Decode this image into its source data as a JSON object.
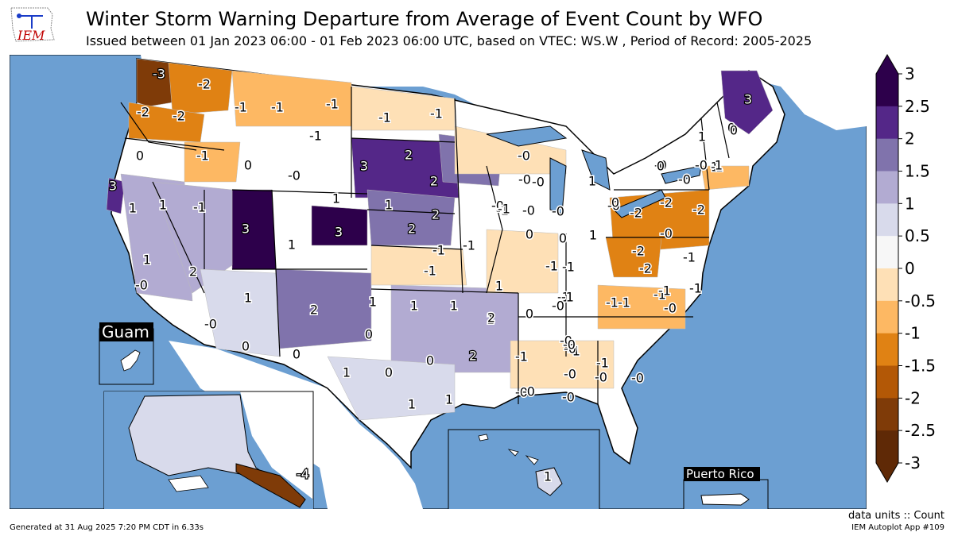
{
  "header": {
    "logo_text": "IEM",
    "title": "Winter Storm Warning Departure from Average of Event Count by WFO",
    "subtitle": "Issued between 01 Jan 2023 06:00 - 01 Feb 2023 06:00 UTC, based on VTEC: WS.W  , Period of Record: 2005-2025"
  },
  "map": {
    "ocean_color": "#6c9fd2",
    "land_color": "#ffffff",
    "insets": {
      "guam": "Guam",
      "puerto_rico": "Puerto Rico"
    },
    "labels": [
      {
        "text": "-3",
        "light": true
      },
      {
        "text": "-2",
        "light": false
      },
      {
        "text": "-2",
        "light": false
      },
      {
        "text": "-2",
        "light": false
      },
      {
        "text": "-1",
        "light": false
      },
      {
        "text": "-1",
        "light": false
      },
      {
        "text": "-1",
        "light": false
      },
      {
        "text": "-1",
        "light": false
      },
      {
        "text": "-1",
        "light": false
      },
      {
        "text": "-1",
        "light": false
      },
      {
        "text": "0",
        "light": false
      },
      {
        "text": "-1",
        "light": false
      },
      {
        "text": "0",
        "light": false
      },
      {
        "text": "-0",
        "light": false
      },
      {
        "text": "3",
        "light": true
      },
      {
        "text": "2",
        "light": true
      },
      {
        "text": "2",
        "light": true
      },
      {
        "text": "3",
        "light": true
      },
      {
        "text": "1",
        "light": false
      },
      {
        "text": "-1",
        "light": false
      },
      {
        "text": "1",
        "light": false
      },
      {
        "text": "3",
        "light": true
      },
      {
        "text": "1",
        "light": false
      },
      {
        "text": "3",
        "light": true
      },
      {
        "text": "1",
        "light": false
      },
      {
        "text": "2",
        "light": true
      },
      {
        "text": "1",
        "light": false
      },
      {
        "text": "2",
        "light": true
      },
      {
        "text": "1",
        "light": false
      },
      {
        "text": "-0",
        "light": false
      },
      {
        "text": "2",
        "light": false
      },
      {
        "text": "1",
        "light": false
      },
      {
        "text": "0",
        "light": false
      },
      {
        "text": "2",
        "light": false
      },
      {
        "text": "-0",
        "light": false
      },
      {
        "text": "0",
        "light": false
      },
      {
        "text": "1",
        "light": false
      },
      {
        "text": "0",
        "light": false
      },
      {
        "text": "1",
        "light": false
      },
      {
        "text": "0",
        "light": false
      },
      {
        "text": "0",
        "light": false
      },
      {
        "text": "1",
        "light": false
      },
      {
        "text": "1",
        "light": false
      },
      {
        "text": "1",
        "light": false
      },
      {
        "text": "1",
        "light": false
      },
      {
        "text": "2",
        "light": true
      },
      {
        "text": "1",
        "light": false
      },
      {
        "text": "2",
        "light": false
      },
      {
        "text": "1",
        "light": false
      },
      {
        "text": "-1",
        "light": false
      },
      {
        "text": "-1",
        "light": false
      },
      {
        "text": "-1",
        "light": false
      },
      {
        "text": "-0",
        "light": false
      },
      {
        "text": "-1",
        "light": false
      },
      {
        "text": "-0",
        "light": false
      },
      {
        "text": "-0",
        "light": false
      },
      {
        "text": "-0",
        "light": false
      },
      {
        "text": "-0",
        "light": false
      },
      {
        "text": "-0",
        "light": false
      },
      {
        "text": "-0",
        "light": false
      },
      {
        "text": "-1",
        "light": false
      },
      {
        "text": "-1",
        "light": false
      },
      {
        "text": "-1",
        "light": false
      },
      {
        "text": "-1",
        "light": false
      },
      {
        "text": "-0",
        "light": false
      },
      {
        "text": "-0",
        "light": false
      },
      {
        "text": "0",
        "light": false
      },
      {
        "text": "0",
        "light": false
      },
      {
        "text": "1",
        "light": false
      },
      {
        "text": "1",
        "light": false
      },
      {
        "text": "-0",
        "light": false
      },
      {
        "text": "-1",
        "light": false
      },
      {
        "text": "-1",
        "light": false
      },
      {
        "text": "0",
        "light": false
      },
      {
        "text": "-0",
        "light": false
      },
      {
        "text": "-1",
        "light": false
      },
      {
        "text": "-0",
        "light": false
      },
      {
        "text": "-0",
        "light": false
      },
      {
        "text": "-1",
        "light": false
      },
      {
        "text": "-0",
        "light": false
      },
      {
        "text": "-0",
        "light": false
      },
      {
        "text": "-0",
        "light": false
      },
      {
        "text": "-0",
        "light": false
      },
      {
        "text": "-0",
        "light": false
      },
      {
        "text": "-2",
        "light": false
      },
      {
        "text": "-2",
        "light": false
      },
      {
        "text": "-2",
        "light": false
      },
      {
        "text": "-2",
        "light": false
      },
      {
        "text": "-2",
        "light": false
      },
      {
        "text": "-0",
        "light": false
      },
      {
        "text": "-1",
        "light": false
      },
      {
        "text": "-1",
        "light": false
      },
      {
        "text": "-1",
        "light": false
      },
      {
        "text": "-1",
        "light": false
      },
      {
        "text": "-1",
        "light": false
      },
      {
        "text": "-0",
        "light": false
      },
      {
        "text": "0",
        "light": false
      },
      {
        "text": "-0",
        "light": false
      },
      {
        "text": "-0",
        "light": false
      },
      {
        "text": "1",
        "light": false
      },
      {
        "text": "0",
        "light": false
      },
      {
        "text": "-0",
        "light": false
      },
      {
        "text": "-1",
        "light": false
      },
      {
        "text": "-1",
        "light": false
      },
      {
        "text": "3",
        "light": true
      },
      {
        "text": "1",
        "light": false
      },
      {
        "text": "0",
        "light": false
      },
      {
        "text": "1",
        "light": false
      },
      {
        "text": "0",
        "light": false
      },
      {
        "text": "-4",
        "light": true
      },
      {
        "text": "1",
        "light": false
      }
    ]
  },
  "colorbar": {
    "tick_labels": [
      "3",
      "2.5",
      "2",
      "1.5",
      "1",
      "0.5",
      "0",
      "-0.5",
      "-1",
      "-1.5",
      "-2",
      "-2.5",
      "-3"
    ],
    "colors": [
      "#2d004b",
      "#542788",
      "#8073ac",
      "#b2abd2",
      "#d8daeb",
      "#f7f7f7",
      "#fee0b6",
      "#fdb863",
      "#e08214",
      "#b35806",
      "#7f3b08",
      "#5f2906"
    ],
    "bin_count": 14
  },
  "footer": {
    "generated": "Generated at 31 Aug 2025 7:20 PM CDT in 6.33s",
    "units": "data units :: Count",
    "app": "IEM Autoplot App #109"
  }
}
